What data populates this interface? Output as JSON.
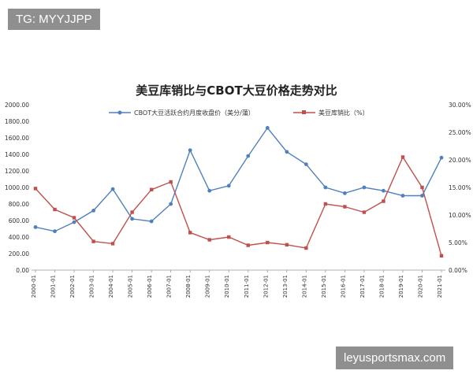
{
  "overlays": {
    "top_tag": "TG: MYYJJPP",
    "bottom_watermark": "leyusportsmax.com"
  },
  "chart_data": {
    "type": "line",
    "title": "美豆库销比与CBOT大豆价格走势对比",
    "x": [
      "2000-01",
      "2001-01",
      "2002-01",
      "2003-01",
      "2004-01",
      "2005-01",
      "2006-01",
      "2007-01",
      "2008-01",
      "2009-01",
      "2010-01",
      "2011-01",
      "2012-01",
      "2013-01",
      "2014-01",
      "2015-01",
      "2016-01",
      "2017-01",
      "2018-01",
      "2019-01",
      "2020-01",
      "2021-01"
    ],
    "series": [
      {
        "name": "CBOT大豆活跃合约月度收盘价（美分/蒲）",
        "axis": "left",
        "color": "#4f81bd",
        "values": [
          520,
          470,
          580,
          720,
          980,
          620,
          590,
          800,
          1450,
          960,
          1020,
          1380,
          1720,
          1430,
          1280,
          1000,
          930,
          1000,
          960,
          900,
          900,
          1360
        ]
      },
      {
        "name": "美豆库销比（%）",
        "axis": "right",
        "color": "#c0504d",
        "values": [
          14.8,
          11.0,
          9.5,
          5.2,
          4.8,
          10.5,
          14.6,
          16.0,
          6.8,
          5.5,
          6.0,
          4.5,
          5.0,
          4.6,
          4.0,
          12.0,
          11.5,
          10.5,
          12.5,
          20.5,
          15.0,
          2.6
        ]
      }
    ],
    "y_left": {
      "min": 0,
      "max": 2000,
      "ticks": [
        "0.00",
        "200.00",
        "400.00",
        "600.00",
        "800.00",
        "1000.00",
        "1200.00",
        "1400.00",
        "1600.00",
        "1800.00",
        "2000.00"
      ]
    },
    "y_right": {
      "min": 0,
      "max": 30,
      "ticks": [
        "0.00%",
        "5.00%",
        "10.00%",
        "15.00%",
        "20.00%",
        "25.00%",
        "30.00%"
      ]
    },
    "grid": false,
    "legend": "top"
  }
}
